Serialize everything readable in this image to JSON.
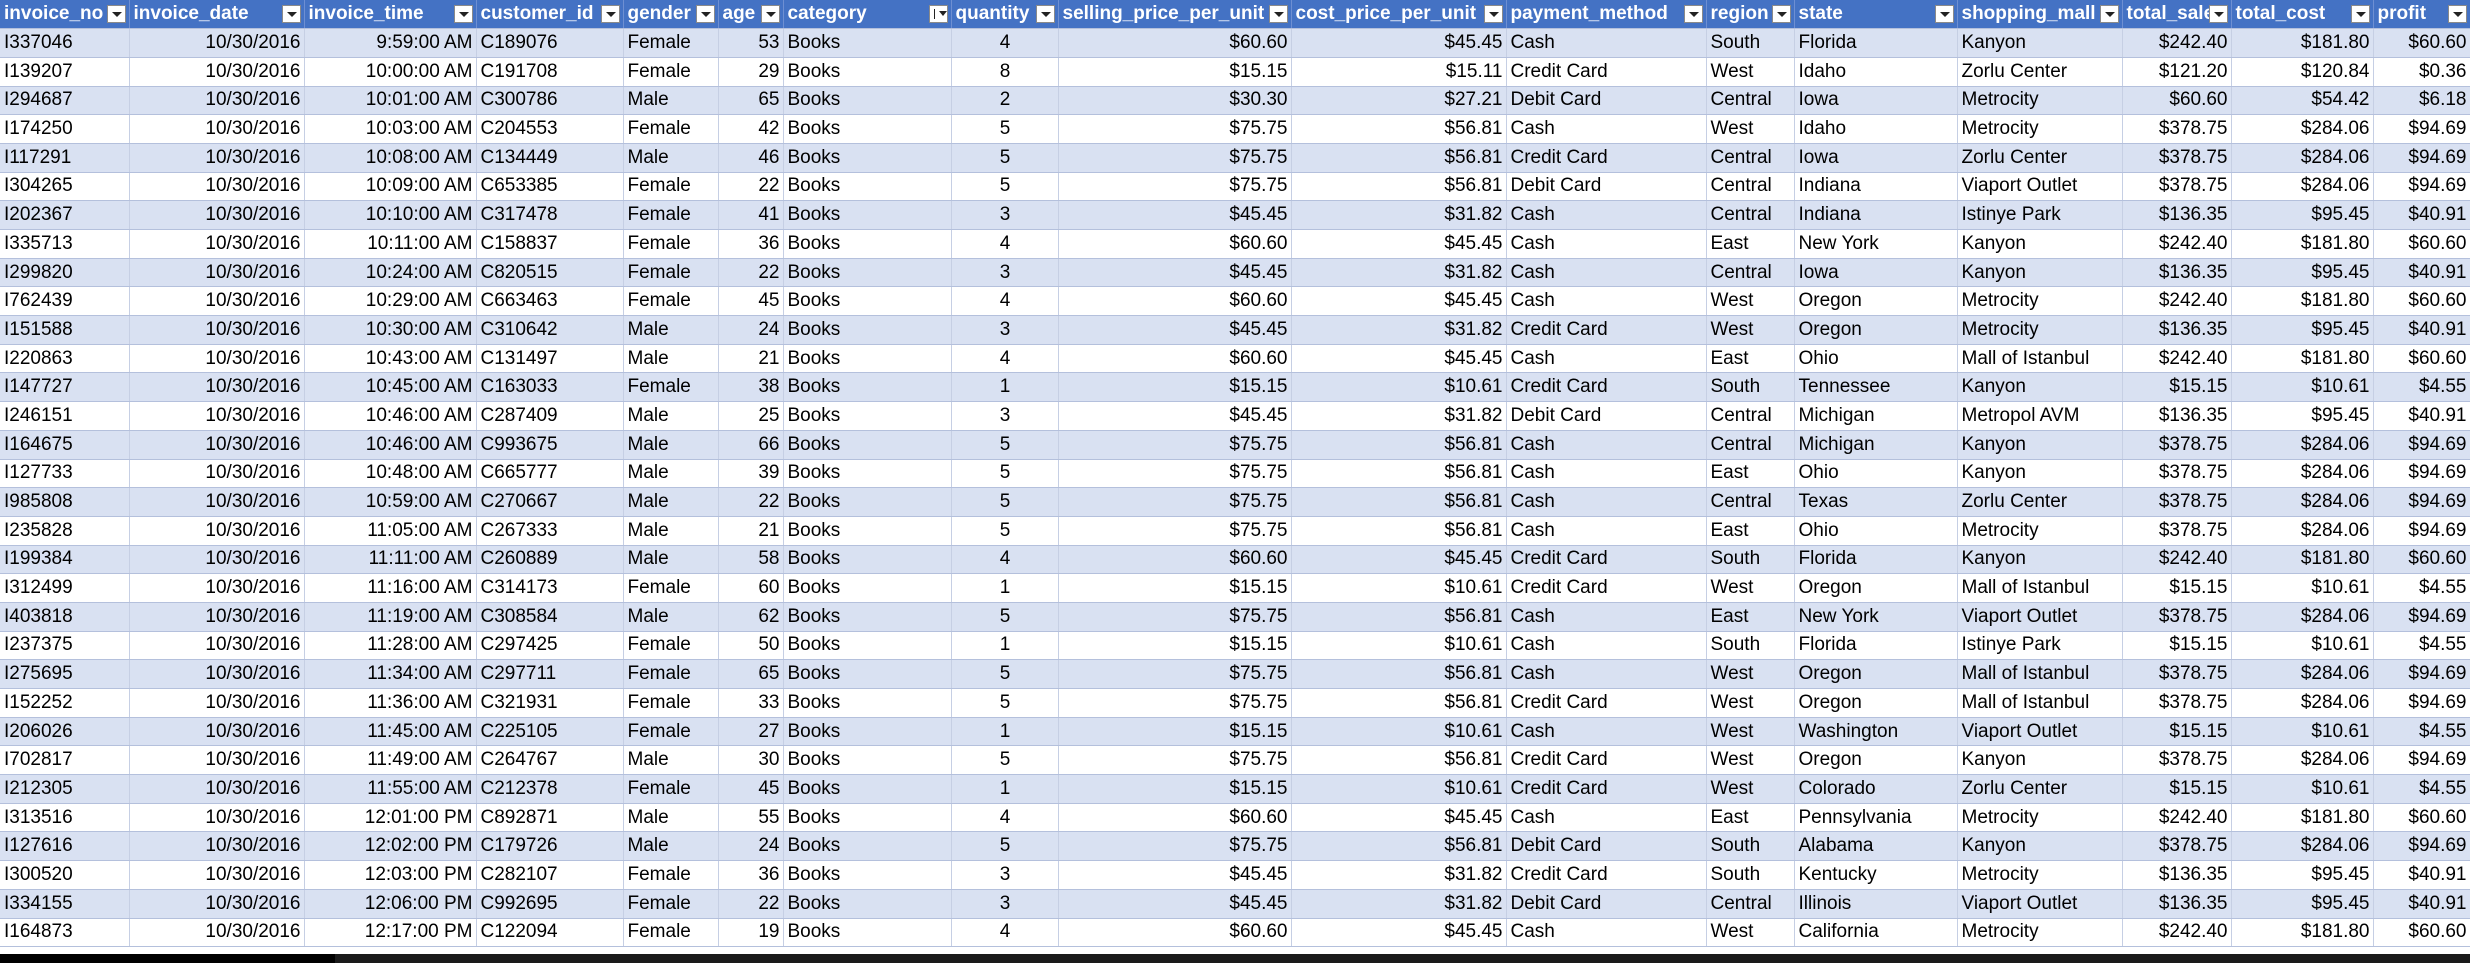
{
  "headers": [
    {
      "label": "invoice_no",
      "sorted": false
    },
    {
      "label": "invoice_date",
      "sorted": false
    },
    {
      "label": "invoice_time",
      "sorted": false
    },
    {
      "label": "customer_id",
      "sorted": false
    },
    {
      "label": "gender",
      "sorted": false
    },
    {
      "label": "age",
      "sorted": false
    },
    {
      "label": "category",
      "sorted": true
    },
    {
      "label": "quantity",
      "sorted": false
    },
    {
      "label": "selling_price_per_unit",
      "sorted": false
    },
    {
      "label": "cost_price_per_unit",
      "sorted": false
    },
    {
      "label": "payment_method",
      "sorted": false
    },
    {
      "label": "region",
      "sorted": false
    },
    {
      "label": "state",
      "sorted": false
    },
    {
      "label": "shopping_mall",
      "sorted": false
    },
    {
      "label": "total_sales",
      "sorted": false
    },
    {
      "label": "total_cost",
      "sorted": false
    },
    {
      "label": "profit",
      "sorted": false
    }
  ],
  "rows": [
    [
      "I337046",
      "10/30/2016",
      "9:59:00 AM",
      "C189076",
      "Female",
      "53",
      "Books",
      "4",
      "$60.60",
      "$45.45",
      "Cash",
      "South",
      "Florida",
      "Kanyon",
      "$242.40",
      "$181.80",
      "$60.60"
    ],
    [
      "I139207",
      "10/30/2016",
      "10:00:00 AM",
      "C191708",
      "Female",
      "29",
      "Books",
      "8",
      "$15.15",
      "$15.11",
      "Credit Card",
      "West",
      "Idaho",
      "Zorlu Center",
      "$121.20",
      "$120.84",
      "$0.36"
    ],
    [
      "I294687",
      "10/30/2016",
      "10:01:00 AM",
      "C300786",
      "Male",
      "65",
      "Books",
      "2",
      "$30.30",
      "$27.21",
      "Debit Card",
      "Central",
      "Iowa",
      "Metrocity",
      "$60.60",
      "$54.42",
      "$6.18"
    ],
    [
      "I174250",
      "10/30/2016",
      "10:03:00 AM",
      "C204553",
      "Female",
      "42",
      "Books",
      "5",
      "$75.75",
      "$56.81",
      "Cash",
      "West",
      "Idaho",
      "Metrocity",
      "$378.75",
      "$284.06",
      "$94.69"
    ],
    [
      "I117291",
      "10/30/2016",
      "10:08:00 AM",
      "C134449",
      "Male",
      "46",
      "Books",
      "5",
      "$75.75",
      "$56.81",
      "Credit Card",
      "Central",
      "Iowa",
      "Zorlu Center",
      "$378.75",
      "$284.06",
      "$94.69"
    ],
    [
      "I304265",
      "10/30/2016",
      "10:09:00 AM",
      "C653385",
      "Female",
      "22",
      "Books",
      "5",
      "$75.75",
      "$56.81",
      "Debit Card",
      "Central",
      "Indiana",
      "Viaport Outlet",
      "$378.75",
      "$284.06",
      "$94.69"
    ],
    [
      "I202367",
      "10/30/2016",
      "10:10:00 AM",
      "C317478",
      "Female",
      "41",
      "Books",
      "3",
      "$45.45",
      "$31.82",
      "Cash",
      "Central",
      "Indiana",
      "Istinye Park",
      "$136.35",
      "$95.45",
      "$40.91"
    ],
    [
      "I335713",
      "10/30/2016",
      "10:11:00 AM",
      "C158837",
      "Female",
      "36",
      "Books",
      "4",
      "$60.60",
      "$45.45",
      "Cash",
      "East",
      "New York",
      "Kanyon",
      "$242.40",
      "$181.80",
      "$60.60"
    ],
    [
      "I299820",
      "10/30/2016",
      "10:24:00 AM",
      "C820515",
      "Female",
      "22",
      "Books",
      "3",
      "$45.45",
      "$31.82",
      "Cash",
      "Central",
      "Iowa",
      "Kanyon",
      "$136.35",
      "$95.45",
      "$40.91"
    ],
    [
      "I762439",
      "10/30/2016",
      "10:29:00 AM",
      "C663463",
      "Female",
      "45",
      "Books",
      "4",
      "$60.60",
      "$45.45",
      "Cash",
      "West",
      "Oregon",
      "Metrocity",
      "$242.40",
      "$181.80",
      "$60.60"
    ],
    [
      "I151588",
      "10/30/2016",
      "10:30:00 AM",
      "C310642",
      "Male",
      "24",
      "Books",
      "3",
      "$45.45",
      "$31.82",
      "Credit Card",
      "West",
      "Oregon",
      "Metrocity",
      "$136.35",
      "$95.45",
      "$40.91"
    ],
    [
      "I220863",
      "10/30/2016",
      "10:43:00 AM",
      "C131497",
      "Male",
      "21",
      "Books",
      "4",
      "$60.60",
      "$45.45",
      "Cash",
      "East",
      "Ohio",
      "Mall of Istanbul",
      "$242.40",
      "$181.80",
      "$60.60"
    ],
    [
      "I147727",
      "10/30/2016",
      "10:45:00 AM",
      "C163033",
      "Female",
      "38",
      "Books",
      "1",
      "$15.15",
      "$10.61",
      "Credit Card",
      "South",
      "Tennessee",
      "Kanyon",
      "$15.15",
      "$10.61",
      "$4.55"
    ],
    [
      "I246151",
      "10/30/2016",
      "10:46:00 AM",
      "C287409",
      "Male",
      "25",
      "Books",
      "3",
      "$45.45",
      "$31.82",
      "Debit Card",
      "Central",
      "Michigan",
      "Metropol AVM",
      "$136.35",
      "$95.45",
      "$40.91"
    ],
    [
      "I164675",
      "10/30/2016",
      "10:46:00 AM",
      "C993675",
      "Male",
      "66",
      "Books",
      "5",
      "$75.75",
      "$56.81",
      "Cash",
      "Central",
      "Michigan",
      "Kanyon",
      "$378.75",
      "$284.06",
      "$94.69"
    ],
    [
      "I127733",
      "10/30/2016",
      "10:48:00 AM",
      "C665777",
      "Male",
      "39",
      "Books",
      "5",
      "$75.75",
      "$56.81",
      "Cash",
      "East",
      "Ohio",
      "Kanyon",
      "$378.75",
      "$284.06",
      "$94.69"
    ],
    [
      "I985808",
      "10/30/2016",
      "10:59:00 AM",
      "C270667",
      "Male",
      "22",
      "Books",
      "5",
      "$75.75",
      "$56.81",
      "Cash",
      "Central",
      "Texas",
      "Zorlu Center",
      "$378.75",
      "$284.06",
      "$94.69"
    ],
    [
      "I235828",
      "10/30/2016",
      "11:05:00 AM",
      "C267333",
      "Male",
      "21",
      "Books",
      "5",
      "$75.75",
      "$56.81",
      "Cash",
      "East",
      "Ohio",
      "Metrocity",
      "$378.75",
      "$284.06",
      "$94.69"
    ],
    [
      "I199384",
      "10/30/2016",
      "11:11:00 AM",
      "C260889",
      "Male",
      "58",
      "Books",
      "4",
      "$60.60",
      "$45.45",
      "Credit Card",
      "South",
      "Florida",
      "Kanyon",
      "$242.40",
      "$181.80",
      "$60.60"
    ],
    [
      "I312499",
      "10/30/2016",
      "11:16:00 AM",
      "C314173",
      "Female",
      "60",
      "Books",
      "1",
      "$15.15",
      "$10.61",
      "Credit Card",
      "West",
      "Oregon",
      "Mall of Istanbul",
      "$15.15",
      "$10.61",
      "$4.55"
    ],
    [
      "I403818",
      "10/30/2016",
      "11:19:00 AM",
      "C308584",
      "Male",
      "62",
      "Books",
      "5",
      "$75.75",
      "$56.81",
      "Cash",
      "East",
      "New York",
      "Viaport Outlet",
      "$378.75",
      "$284.06",
      "$94.69"
    ],
    [
      "I237375",
      "10/30/2016",
      "11:28:00 AM",
      "C297425",
      "Female",
      "50",
      "Books",
      "1",
      "$15.15",
      "$10.61",
      "Cash",
      "South",
      "Florida",
      "Istinye Park",
      "$15.15",
      "$10.61",
      "$4.55"
    ],
    [
      "I275695",
      "10/30/2016",
      "11:34:00 AM",
      "C297711",
      "Female",
      "65",
      "Books",
      "5",
      "$75.75",
      "$56.81",
      "Cash",
      "West",
      "Oregon",
      "Mall of Istanbul",
      "$378.75",
      "$284.06",
      "$94.69"
    ],
    [
      "I152252",
      "10/30/2016",
      "11:36:00 AM",
      "C321931",
      "Female",
      "33",
      "Books",
      "5",
      "$75.75",
      "$56.81",
      "Credit Card",
      "West",
      "Oregon",
      "Mall of Istanbul",
      "$378.75",
      "$284.06",
      "$94.69"
    ],
    [
      "I206026",
      "10/30/2016",
      "11:45:00 AM",
      "C225105",
      "Female",
      "27",
      "Books",
      "1",
      "$15.15",
      "$10.61",
      "Cash",
      "West",
      "Washington",
      "Viaport Outlet",
      "$15.15",
      "$10.61",
      "$4.55"
    ],
    [
      "I702817",
      "10/30/2016",
      "11:49:00 AM",
      "C264767",
      "Male",
      "30",
      "Books",
      "5",
      "$75.75",
      "$56.81",
      "Credit Card",
      "West",
      "Oregon",
      "Kanyon",
      "$378.75",
      "$284.06",
      "$94.69"
    ],
    [
      "I212305",
      "10/30/2016",
      "11:55:00 AM",
      "C212378",
      "Female",
      "45",
      "Books",
      "1",
      "$15.15",
      "$10.61",
      "Credit Card",
      "West",
      "Colorado",
      "Zorlu Center",
      "$15.15",
      "$10.61",
      "$4.55"
    ],
    [
      "I313516",
      "10/30/2016",
      "12:01:00 PM",
      "C892871",
      "Male",
      "55",
      "Books",
      "4",
      "$60.60",
      "$45.45",
      "Cash",
      "East",
      "Pennsylvania",
      "Metrocity",
      "$242.40",
      "$181.80",
      "$60.60"
    ],
    [
      "I127616",
      "10/30/2016",
      "12:02:00 PM",
      "C179726",
      "Male",
      "24",
      "Books",
      "5",
      "$75.75",
      "$56.81",
      "Debit Card",
      "South",
      "Alabama",
      "Kanyon",
      "$378.75",
      "$284.06",
      "$94.69"
    ],
    [
      "I300520",
      "10/30/2016",
      "12:03:00 PM",
      "C282107",
      "Female",
      "36",
      "Books",
      "3",
      "$45.45",
      "$31.82",
      "Credit Card",
      "South",
      "Kentucky",
      "Metrocity",
      "$136.35",
      "$95.45",
      "$40.91"
    ],
    [
      "I334155",
      "10/30/2016",
      "12:06:00 PM",
      "C992695",
      "Female",
      "22",
      "Books",
      "3",
      "$45.45",
      "$31.82",
      "Debit Card",
      "Central",
      "Illinois",
      "Viaport Outlet",
      "$136.35",
      "$95.45",
      "$40.91"
    ],
    [
      "I164873",
      "10/30/2016",
      "12:17:00 PM",
      "C122094",
      "Female",
      "19",
      "Books",
      "4",
      "$60.60",
      "$45.45",
      "Cash",
      "West",
      "California",
      "Metrocity",
      "$242.40",
      "$181.80",
      "$60.60"
    ]
  ]
}
